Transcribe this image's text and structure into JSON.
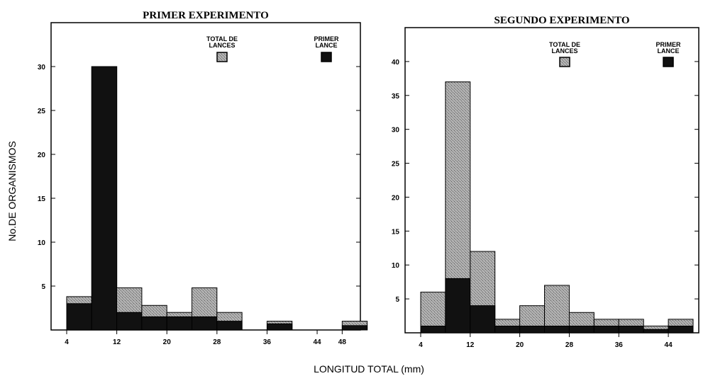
{
  "colors": {
    "total_lances": "#9a9a9a",
    "primer_lance": "#111111",
    "axis": "#000000",
    "background": "#ffffff"
  },
  "figure": {
    "shared_xlabel": "LONGITUD TOTAL (mm)",
    "shared_ylabel": "No.DE ORGANISMOS"
  },
  "chart_data": [
    {
      "type": "bar",
      "title": "PRIMER EXPERIMENTO",
      "xlabel": "LONGITUD TOTAL (mm)",
      "ylabel": "No.DE ORGANISMOS",
      "bin_width": 4,
      "xlim": [
        4,
        50
      ],
      "ylim": [
        0,
        35
      ],
      "x_ticks": [
        4,
        12,
        20,
        28,
        36,
        44,
        48
      ],
      "y_ticks": [
        5,
        10,
        15,
        20,
        25,
        30
      ],
      "legend": [
        "TOTAL DE LANCES",
        "PRIMER LANCE"
      ],
      "legend_position": "top",
      "bin_starts": [
        4,
        8,
        12,
        16,
        20,
        24,
        28,
        32,
        36,
        40,
        44,
        48
      ],
      "series": [
        {
          "name": "TOTAL DE LANCES",
          "values": [
            3.8,
            30,
            4.8,
            2.8,
            2,
            4.8,
            2,
            0,
            1,
            0,
            0,
            1
          ]
        },
        {
          "name": "PRIMER LANCE",
          "values": [
            3,
            30,
            2,
            1.5,
            1.5,
            1.5,
            1,
            0,
            0.7,
            0,
            0,
            0.5
          ]
        }
      ]
    },
    {
      "type": "bar",
      "title": "SEGUNDO EXPERIMENTO",
      "xlabel": "LONGITUD TOTAL (mm)",
      "ylabel": "No.DE ORGANISMOS",
      "bin_width": 4,
      "xlim": [
        4,
        48
      ],
      "ylim": [
        0,
        45
      ],
      "x_ticks": [
        4,
        12,
        20,
        28,
        36,
        44
      ],
      "y_ticks": [
        5,
        10,
        15,
        20,
        25,
        30,
        35,
        40
      ],
      "legend": [
        "TOTAL DE LANCES",
        "PRIMER LANCE"
      ],
      "legend_position": "top",
      "bin_starts": [
        4,
        8,
        12,
        16,
        20,
        24,
        28,
        32,
        36,
        40,
        44
      ],
      "series": [
        {
          "name": "TOTAL DE LANCES",
          "values": [
            6,
            37,
            12,
            2,
            4,
            7,
            3,
            2,
            2,
            1,
            2
          ]
        },
        {
          "name": "PRIMER LANCE",
          "values": [
            1,
            8,
            4,
            1,
            1,
            1,
            1,
            1,
            1,
            0.5,
            1
          ]
        }
      ]
    }
  ]
}
